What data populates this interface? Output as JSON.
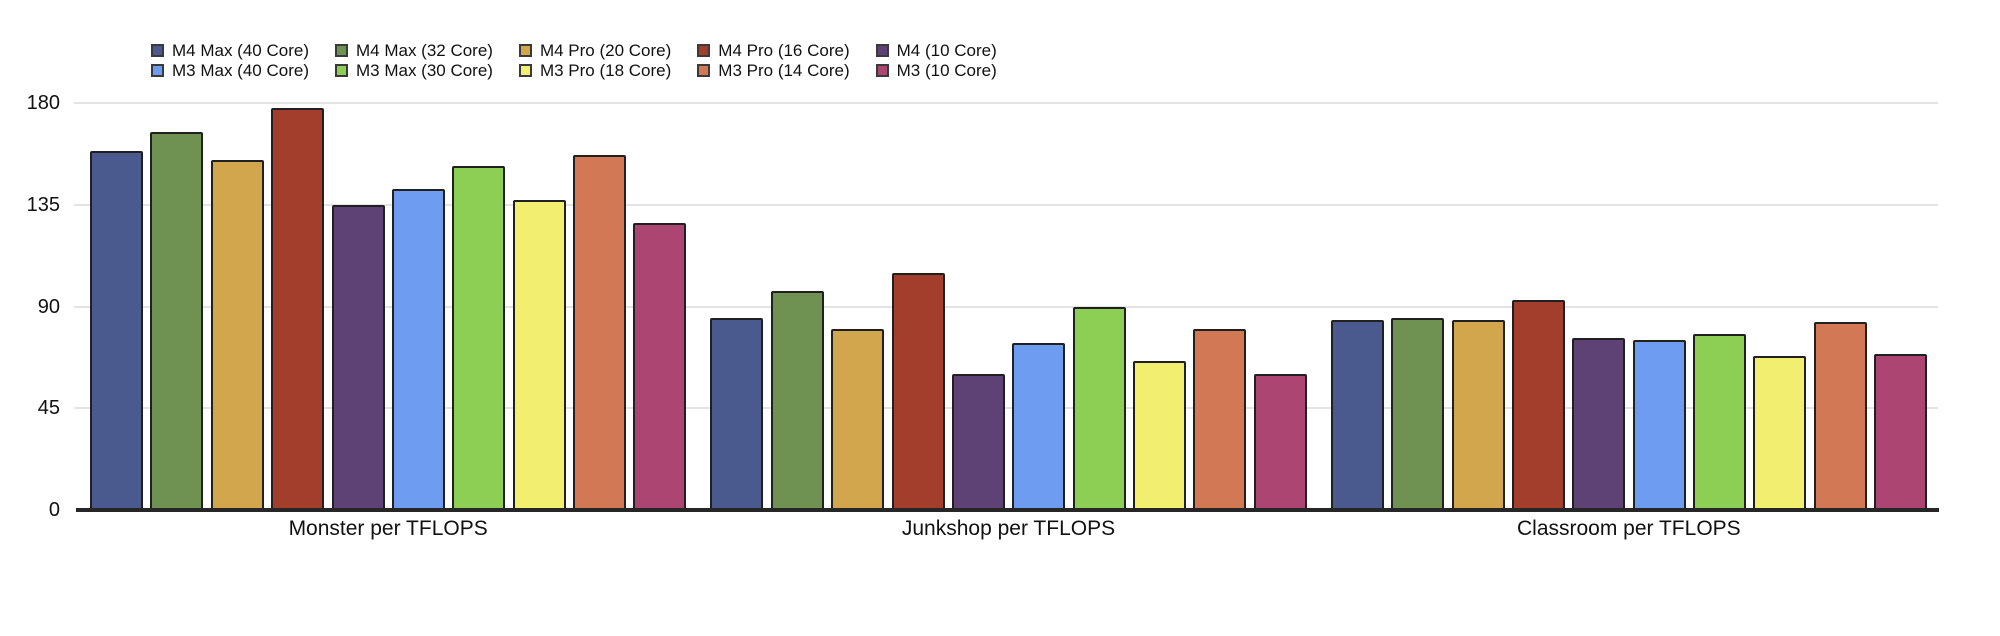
{
  "chart_data": {
    "type": "bar",
    "title": "",
    "categories": [
      "Monster per TFLOPS",
      "Junkshop per TFLOPS",
      "Classroom per TFLOPS"
    ],
    "series": [
      {
        "name": "M4 Max (40 Core)",
        "color": "#4a5a8e",
        "values": [
          159,
          85,
          84
        ]
      },
      {
        "name": "M4 Max (32 Core)",
        "color": "#6f9152",
        "values": [
          167,
          97,
          85
        ]
      },
      {
        "name": "M4 Pro (20 Core)",
        "color": "#d1a64c",
        "values": [
          155,
          80,
          84
        ]
      },
      {
        "name": "M4 Pro (16 Core)",
        "color": "#a43e2c",
        "values": [
          178,
          105,
          93
        ]
      },
      {
        "name": "M4 (10 Core)",
        "color": "#5e4276",
        "values": [
          135,
          60,
          76
        ]
      },
      {
        "name": "M3 Max (40 Core)",
        "color": "#6e9cf1",
        "values": [
          142,
          74,
          75
        ]
      },
      {
        "name": "M3 Max (30 Core)",
        "color": "#8dce54",
        "values": [
          152,
          90,
          78
        ]
      },
      {
        "name": "M3 Pro (18 Core)",
        "color": "#f2ee70",
        "values": [
          137,
          66,
          68
        ]
      },
      {
        "name": "M3 Pro (14 Core)",
        "color": "#d37854",
        "values": [
          157,
          80,
          83
        ]
      },
      {
        "name": "M3 (10 Core)",
        "color": "#ad4573",
        "values": [
          127,
          60,
          69
        ]
      }
    ],
    "legend_rows": [
      [
        0,
        1,
        2,
        3,
        4
      ],
      [
        5,
        6,
        7,
        8,
        9
      ]
    ],
    "legend_position": "top-left",
    "y_ticks": [
      0,
      45,
      90,
      135,
      180
    ],
    "ylim": [
      0,
      180
    ],
    "xlabel": "",
    "ylabel": "",
    "grid": true,
    "colors": {
      "bar_border": "#202020",
      "grid_line": "#e3e3e3",
      "axis_line": "#262626",
      "text": "#111111",
      "background": "#ffffff",
      "legend_swatch_border": "#3a3a3a"
    }
  }
}
